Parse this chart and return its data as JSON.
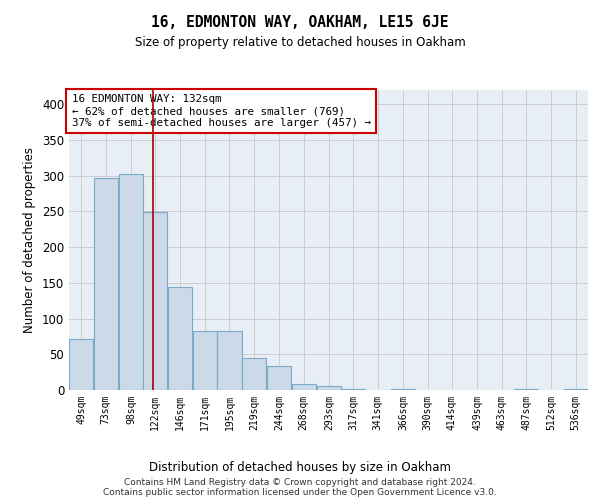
{
  "title": "16, EDMONTON WAY, OAKHAM, LE15 6JE",
  "subtitle": "Size of property relative to detached houses in Oakham",
  "xlabel": "Distribution of detached houses by size in Oakham",
  "ylabel": "Number of detached properties",
  "bar_color": "#ccd9e8",
  "bar_edge_color": "#7aaac8",
  "grid_color": "#cccccc",
  "bg_color": "#e8eef5",
  "vline_color": "#aa0000",
  "vline_x": 132,
  "annotation_text": "16 EDMONTON WAY: 132sqm\n← 62% of detached houses are smaller (769)\n37% of semi-detached houses are larger (457) →",
  "annotation_box_facecolor": "#ffffff",
  "annotation_box_edge": "#cc0000",
  "footer": "Contains HM Land Registry data © Crown copyright and database right 2024.\nContains public sector information licensed under the Open Government Licence v3.0.",
  "bins_left_edges": [
    49,
    73,
    98,
    122,
    146,
    171,
    195,
    219,
    244,
    268,
    293,
    317,
    341,
    366,
    390,
    414,
    439,
    463,
    487,
    512,
    536
  ],
  "bar_heights": [
    72,
    297,
    303,
    249,
    144,
    82,
    82,
    45,
    33,
    8,
    5,
    1,
    0,
    1,
    0,
    0,
    0,
    0,
    1,
    0,
    1
  ],
  "bin_width": 24,
  "xlim_left": 49,
  "xlim_right": 560,
  "ylim_top": 420,
  "yticks": [
    0,
    50,
    100,
    150,
    200,
    250,
    300,
    350,
    400
  ],
  "tick_labels": [
    "49sqm",
    "73sqm",
    "98sqm",
    "122sqm",
    "146sqm",
    "171sqm",
    "195sqm",
    "219sqm",
    "244sqm",
    "268sqm",
    "293sqm",
    "317sqm",
    "341sqm",
    "366sqm",
    "390sqm",
    "414sqm",
    "439sqm",
    "463sqm",
    "487sqm",
    "512sqm",
    "536sqm"
  ]
}
